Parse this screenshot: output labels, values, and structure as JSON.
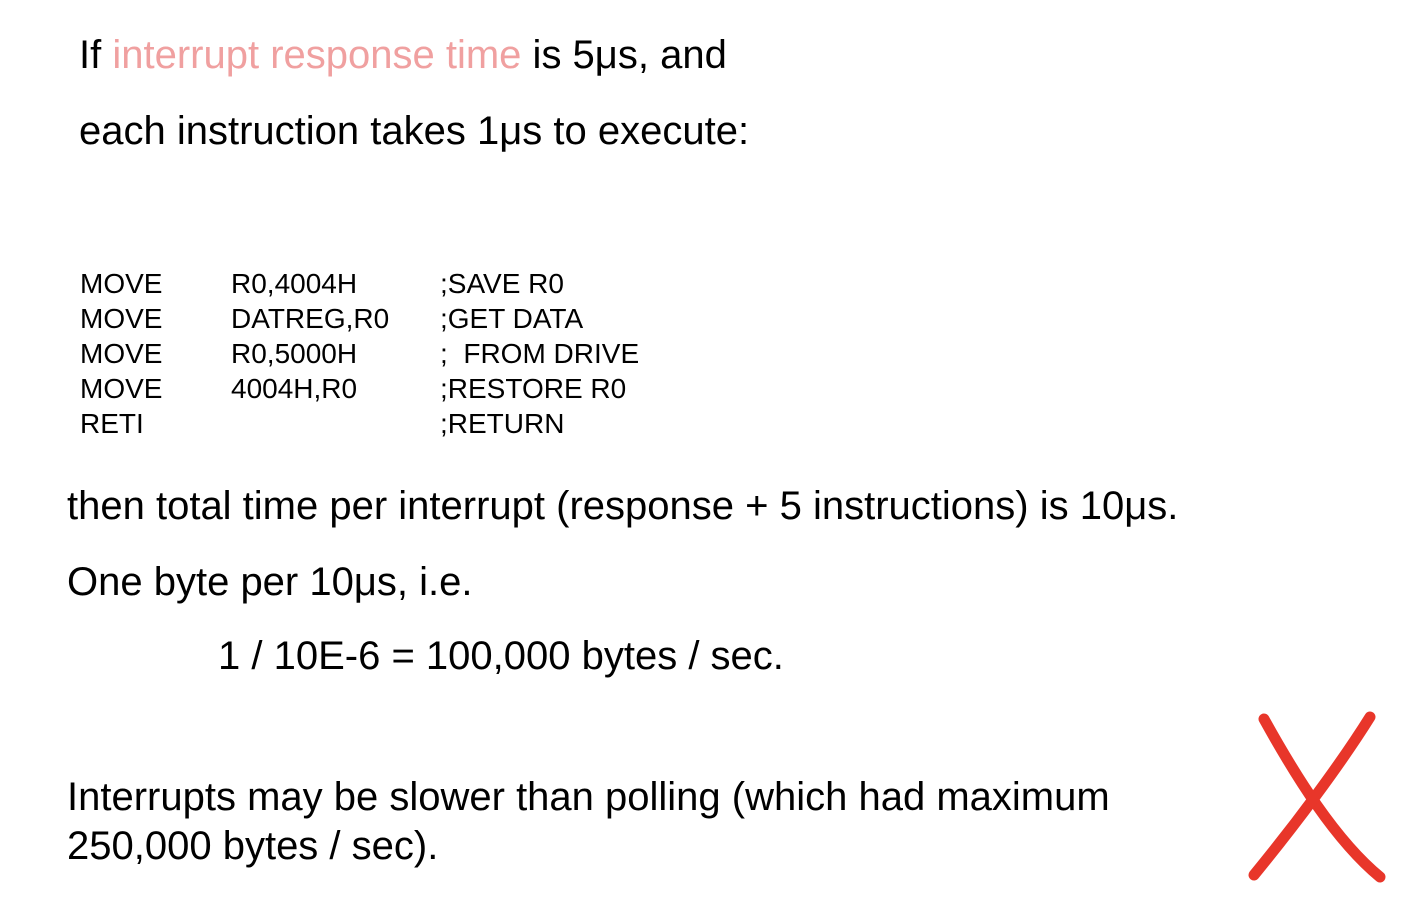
{
  "intro": {
    "line1_prefix": "If ",
    "line1_highlight": "interrupt response time",
    "line1_suffix": " is 5μs, and",
    "line2": "each instruction takes 1μs to execute:"
  },
  "code": [
    {
      "op": "MOVE",
      "arg": "R0,4004H",
      "comment": ";SAVE R0"
    },
    {
      "op": "MOVE",
      "arg": "DATREG,R0",
      "comment": ";GET DATA"
    },
    {
      "op": "MOVE",
      "arg": "R0,5000H",
      "comment": ";  FROM DRIVE"
    },
    {
      "op": "MOVE",
      "arg": "4004H,R0",
      "comment": ";RESTORE R0"
    },
    {
      "op": "RETI",
      "arg": "",
      "comment": ";RETURN"
    }
  ],
  "result": {
    "line1": "then total time per interrupt (response + 5 instructions) is 10μs.",
    "line2": "One byte per 10μs, i.e.",
    "formula": "1 / 10E-6 = 100,000 bytes / sec.",
    "conclusion": "Interrupts may be slower than polling (which had maximum 250,000 bytes / sec)."
  },
  "colors": {
    "highlight": "#f0a0a0",
    "cross_mark": "#e8362a"
  },
  "icons": {
    "cross": "red-x-mark-icon"
  }
}
